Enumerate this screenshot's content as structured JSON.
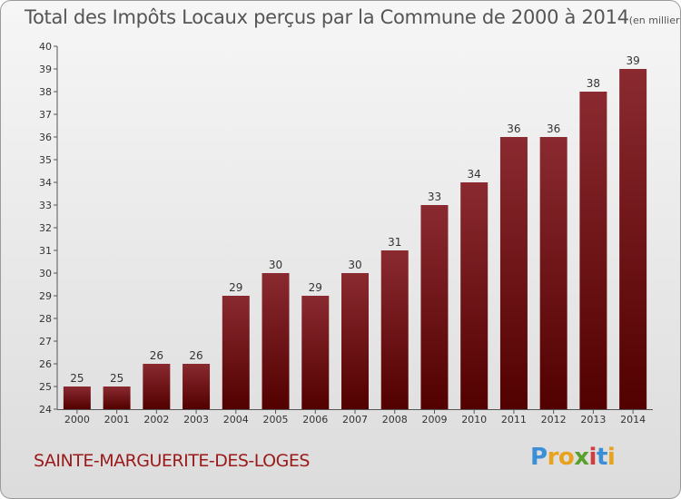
{
  "title_main": "Total des Impôts Locaux perçus par la Commune de 2000 à 2014",
  "title_unit": "(en milliers d'€)",
  "commune": "SAINTE-MARGUERITE-DES-LOGES",
  "logo": {
    "letters": [
      "P",
      "r",
      "o",
      "x",
      "i",
      "t",
      "i"
    ],
    "colors": [
      "#3a8fd6",
      "#e8a21c",
      "#e8a21c",
      "#5aa02c",
      "#d23c3c",
      "#3a8fd6",
      "#e8a21c"
    ]
  },
  "colors": {
    "bar_top": "#8a2a30",
    "bar_bottom": "#520000",
    "axis": "#555555",
    "label": "#333333"
  },
  "chart_data": {
    "type": "bar",
    "categories": [
      "2000",
      "2001",
      "2002",
      "2003",
      "2004",
      "2005",
      "2006",
      "2007",
      "2008",
      "2009",
      "2010",
      "2011",
      "2012",
      "2013",
      "2014"
    ],
    "values": [
      25,
      25,
      26,
      26,
      29,
      30,
      29,
      30,
      31,
      33,
      34,
      36,
      36,
      38,
      39
    ],
    "data_labels": [
      "25",
      "25",
      "26",
      "26",
      "29",
      "30",
      "29",
      "30",
      "31",
      "33",
      "34",
      "36",
      "36",
      "38",
      "39"
    ],
    "ylim": [
      24,
      40
    ],
    "yticks": [
      24,
      25,
      26,
      27,
      28,
      29,
      30,
      31,
      32,
      33,
      34,
      35,
      36,
      37,
      38,
      39,
      40
    ],
    "xlabel": "",
    "ylabel": "",
    "grid": false
  }
}
